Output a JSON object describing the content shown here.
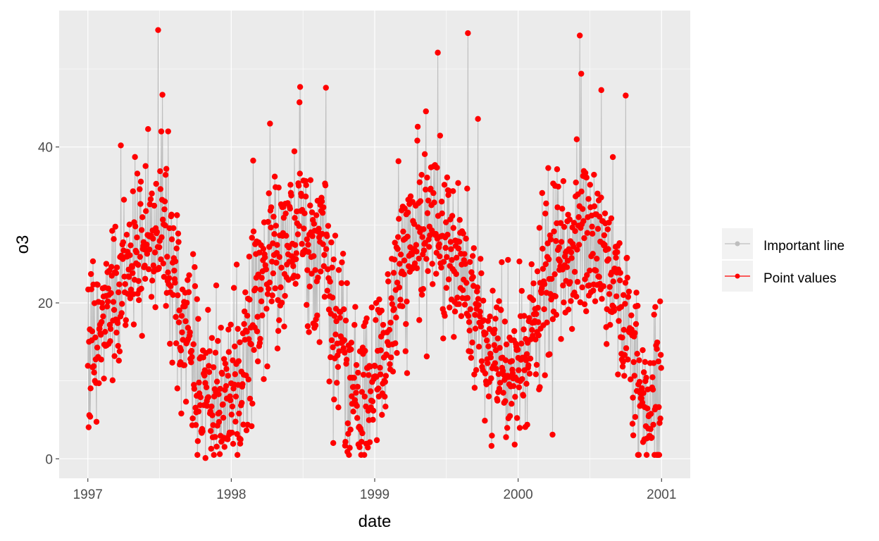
{
  "chart_data": {
    "type": "line",
    "title": "",
    "xlabel": "date",
    "ylabel": "o3",
    "x_ticks": [
      1997,
      1998,
      1999,
      2000,
      2001
    ],
    "x_tick_labels": [
      "1997",
      "1998",
      "1999",
      "2000",
      "2001"
    ],
    "y_ticks": [
      0,
      20,
      40
    ],
    "y_tick_labels": [
      "0",
      "20",
      "40"
    ],
    "xlim": [
      1996.8,
      2001.2
    ],
    "ylim": [
      -2.5,
      57.5
    ],
    "grid": true,
    "legend_position": "right",
    "colors": {
      "panel_background": "#ebebeb",
      "grid": "#ffffff",
      "line": "#bebebe",
      "points": "#ff0000",
      "tick_text": "#4d4d4d",
      "tick_marks": "#333333"
    },
    "series": [
      {
        "name": "Important line",
        "kind": "line",
        "color": "#bebebe",
        "envelope": [
          {
            "x": 1997.0,
            "y": 13
          },
          {
            "x": 1997.08,
            "y": 17
          },
          {
            "x": 1997.17,
            "y": 21
          },
          {
            "x": 1997.25,
            "y": 24
          },
          {
            "x": 1997.33,
            "y": 27
          },
          {
            "x": 1997.42,
            "y": 28
          },
          {
            "x": 1997.5,
            "y": 29
          },
          {
            "x": 1997.58,
            "y": 24
          },
          {
            "x": 1997.67,
            "y": 17
          },
          {
            "x": 1997.75,
            "y": 12
          },
          {
            "x": 1997.83,
            "y": 8
          },
          {
            "x": 1997.92,
            "y": 7
          },
          {
            "x": 1998.0,
            "y": 7
          },
          {
            "x": 1998.08,
            "y": 12
          },
          {
            "x": 1998.17,
            "y": 20
          },
          {
            "x": 1998.25,
            "y": 24
          },
          {
            "x": 1998.33,
            "y": 27
          },
          {
            "x": 1998.42,
            "y": 29
          },
          {
            "x": 1998.5,
            "y": 29
          },
          {
            "x": 1998.58,
            "y": 27
          },
          {
            "x": 1998.67,
            "y": 24
          },
          {
            "x": 1998.75,
            "y": 15
          },
          {
            "x": 1998.83,
            "y": 8
          },
          {
            "x": 1998.92,
            "y": 8
          },
          {
            "x": 1999.0,
            "y": 10
          },
          {
            "x": 1999.08,
            "y": 15
          },
          {
            "x": 1999.17,
            "y": 23
          },
          {
            "x": 1999.25,
            "y": 27
          },
          {
            "x": 1999.33,
            "y": 28
          },
          {
            "x": 1999.42,
            "y": 30
          },
          {
            "x": 1999.5,
            "y": 28
          },
          {
            "x": 1999.58,
            "y": 26
          },
          {
            "x": 1999.67,
            "y": 20
          },
          {
            "x": 1999.75,
            "y": 15
          },
          {
            "x": 1999.83,
            "y": 12
          },
          {
            "x": 1999.92,
            "y": 11
          },
          {
            "x": 2000.0,
            "y": 11
          },
          {
            "x": 2000.08,
            "y": 14
          },
          {
            "x": 2000.17,
            "y": 21
          },
          {
            "x": 2000.25,
            "y": 24
          },
          {
            "x": 2000.33,
            "y": 26
          },
          {
            "x": 2000.42,
            "y": 28
          },
          {
            "x": 2000.5,
            "y": 28
          },
          {
            "x": 2000.58,
            "y": 27
          },
          {
            "x": 2000.67,
            "y": 24
          },
          {
            "x": 2000.75,
            "y": 17
          },
          {
            "x": 2000.83,
            "y": 10
          },
          {
            "x": 2000.92,
            "y": 7
          },
          {
            "x": 2000.99,
            "y": 8
          }
        ]
      },
      {
        "name": "Point values",
        "kind": "points",
        "color": "#ff0000",
        "noise_sd": 5.2
      }
    ],
    "notable_points": [
      {
        "x": 1997.01,
        "y": 5.6
      },
      {
        "x": 1997.23,
        "y": 40.2
      },
      {
        "x": 1997.42,
        "y": 42.3
      },
      {
        "x": 1997.49,
        "y": 55.0
      },
      {
        "x": 1997.52,
        "y": 46.7
      },
      {
        "x": 1997.56,
        "y": 42.0
      },
      {
        "x": 1997.82,
        "y": 0.1
      },
      {
        "x": 1998.27,
        "y": 43.0
      },
      {
        "x": 1998.48,
        "y": 47.7
      },
      {
        "x": 1998.66,
        "y": 47.6
      },
      {
        "x": 1998.81,
        "y": 0.9
      },
      {
        "x": 1999.3,
        "y": 42.6
      },
      {
        "x": 1999.44,
        "y": 52.1
      },
      {
        "x": 1999.65,
        "y": 54.6
      },
      {
        "x": 1999.72,
        "y": 43.6
      },
      {
        "x": 2000.21,
        "y": 37.3
      },
      {
        "x": 2000.24,
        "y": 3.1
      },
      {
        "x": 2000.43,
        "y": 54.3
      },
      {
        "x": 2000.44,
        "y": 49.4
      },
      {
        "x": 2000.58,
        "y": 47.3
      },
      {
        "x": 2000.75,
        "y": 46.6
      },
      {
        "x": 2000.88,
        "y": 2.5
      },
      {
        "x": 2000.99,
        "y": 20.2
      }
    ],
    "n_points": 1461
  }
}
